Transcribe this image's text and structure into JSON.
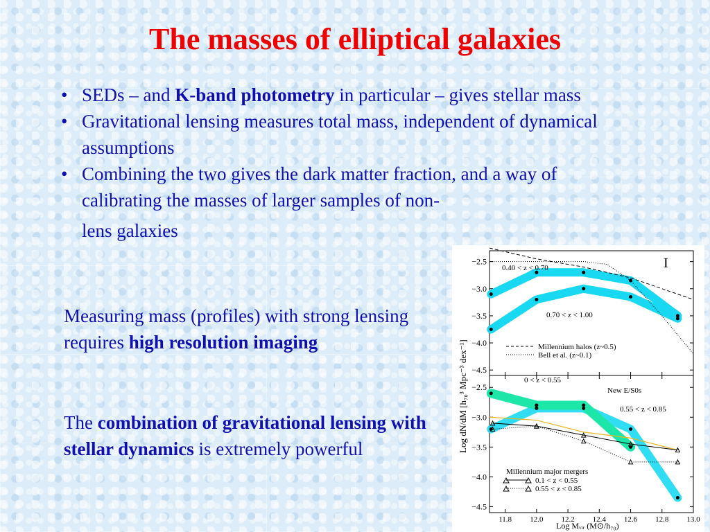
{
  "slide": {
    "title": "The masses of elliptical galaxies",
    "bullets": {
      "b1": {
        "t1": "SEDs – and ",
        "bold": "K-band photometry",
        "t2": " in particular – gives stellar mass"
      },
      "b2": {
        "t1": "Gravitational lensing measures total mass, independent of dynamical assumptions"
      },
      "b3": {
        "t1": "Combining the two gives the dark matter fraction, and a way of calibrating the masses of larger samples of non-",
        "t3": "lens galaxies"
      }
    },
    "para1": {
      "t1": "Measuring mass (profiles) with strong lensing requires ",
      "bold": "high resolution imaging"
    },
    "para2": {
      "t1": "The ",
      "bold": "combination of gravitational lensing with stellar dynamics",
      "t2": " is extremely powerful"
    },
    "bullet_glyph": "•"
  },
  "figure": {
    "ylabel": "Log dN/dM [h₇₀³ Mpc⁻³ dex⁻¹]",
    "xlabel": "Log Mᵥᵢᵣ (M⊙/h₇₀)",
    "x_ticks": [
      "11.8",
      "12.0",
      "12.2",
      "12.4",
      "12.6",
      "12.8",
      "13.0"
    ],
    "top_panel": {
      "y_ticks": [
        "−2.5",
        "−3.0",
        "−3.5",
        "−4.0",
        "−4.5"
      ],
      "label_a": "0.40 < z < 0.70",
      "label_b": "0.70 < z < 1.00",
      "error_glyph": "I",
      "legend": [
        "Millennium halos (z~0.5)",
        "Bell et al. (z~0.1)"
      ]
    },
    "bottom_panel": {
      "y_ticks": [
        "−2.5",
        "−3.0",
        "−3.5",
        "−4.0",
        "−4.5"
      ],
      "label_a": "0 < z < 0.55",
      "label_b": "New E/S0s",
      "label_c": "0.55 < z < 0.85",
      "legend_title": "Millennium major mergers",
      "legend": [
        "0.1 < z < 0.55",
        "0.55 < z < 0.85"
      ]
    },
    "colors": {
      "cyan": "#19d9f2",
      "green": "#1de7a8",
      "yellow": "#e8b81a"
    }
  },
  "chart_data": {
    "type": "line",
    "panels": [
      {
        "name": "top",
        "x_range": [
          11.7,
          13.0
        ],
        "ylim": [
          -4.6,
          -2.3
        ],
        "series": [
          {
            "name": "0.40 < z < 0.70",
            "x": [
              11.71,
              12.0,
              12.3,
              12.6,
              12.9
            ],
            "y": [
              -3.1,
              -2.7,
              -2.7,
              -2.85,
              -3.5
            ]
          },
          {
            "name": "0.70 < z < 1.00",
            "x": [
              11.71,
              12.0,
              12.3,
              12.6,
              12.9
            ],
            "y": [
              -3.75,
              -3.2,
              -3.0,
              -3.15,
              -3.55
            ]
          },
          {
            "name": "Millennium halos (z~0.5)",
            "x": [
              11.7,
              12.0,
              12.3,
              12.6,
              13.0
            ],
            "y": [
              -2.25,
              -2.45,
              -2.6,
              -2.8,
              -3.2
            ]
          },
          {
            "name": "Bell et al. (z~0.1)",
            "x": [
              11.7,
              12.0,
              12.3,
              12.45,
              12.6,
              12.8,
              13.0
            ],
            "y": [
              -2.5,
              -2.5,
              -2.5,
              -2.55,
              -2.85,
              -3.5,
              -4.2
            ]
          }
        ]
      },
      {
        "name": "bottom",
        "x_range": [
          11.7,
          13.0
        ],
        "ylim": [
          -4.6,
          -2.3
        ],
        "series": [
          {
            "name": "0 < z < 0.55",
            "x": [
              11.71,
              12.0,
              12.3,
              12.6
            ],
            "y": [
              -2.6,
              -2.8,
              -2.8,
              -3.5
            ]
          },
          {
            "name": "0.55 < z < 0.85",
            "x": [
              11.71,
              12.0,
              12.3,
              12.6,
              12.9
            ],
            "y": [
              -3.2,
              -2.85,
              -2.85,
              -3.2,
              -4.35
            ]
          },
          {
            "name": "0.1 < z < 0.55",
            "x": [
              11.72,
              12.0,
              12.3,
              12.6,
              12.9
            ],
            "y": [
              -3.1,
              -3.15,
              -3.3,
              -3.45,
              -3.55
            ]
          },
          {
            "name": "0.55 < z < 0.85",
            "x": [
              11.72,
              12.0,
              12.3,
              12.6,
              12.9
            ],
            "y": [
              -3.2,
              -3.15,
              -3.4,
              -3.75,
              -3.75
            ]
          },
          {
            "name": "",
            "x": [
              11.7,
              12.0,
              12.3,
              12.6,
              12.9
            ],
            "y": [
              -3.0,
              -3.05,
              -3.25,
              -3.35,
              -3.55
            ]
          }
        ]
      }
    ]
  }
}
